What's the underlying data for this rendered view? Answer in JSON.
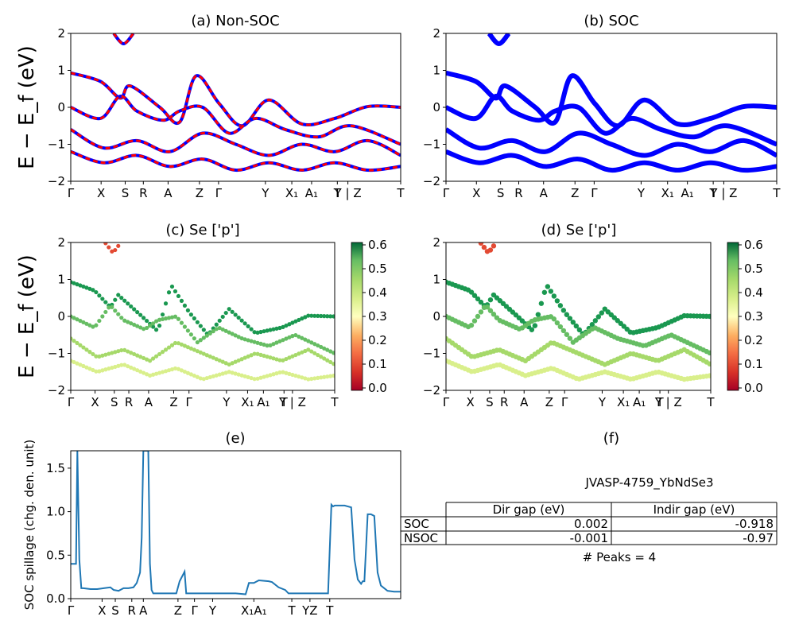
{
  "chart_data": [
    {
      "id": "a",
      "type": "line",
      "title": "(a) Non-SOC",
      "ylabel": "E − E_f (eV)",
      "ylim": [
        -2,
        2
      ],
      "yticks": [
        "2",
        "1",
        "0",
        "−1",
        "−2"
      ],
      "kpath_labels": [
        "Γ",
        "X",
        "S",
        "R",
        "A",
        "Z",
        "Γ",
        "Y",
        "X₁",
        "A₁",
        "T",
        "Y | Z",
        "T"
      ],
      "series": [
        {
          "color": "#0000ff",
          "x": [
            0,
            0.09,
            0.15,
            0.18,
            0.27,
            0.33,
            0.38,
            0.45,
            0.52,
            0.6,
            0.7,
            0.8,
            0.9,
            1.0
          ],
          "y": [
            0.93,
            0.7,
            0.25,
            0.58,
            0.0,
            -0.4,
            0.85,
            0.1,
            -0.5,
            0.2,
            -0.45,
            -0.3,
            0.02,
            0.0
          ]
        },
        {
          "color": "#0000ff",
          "x": [
            0,
            0.09,
            0.15,
            0.2,
            0.28,
            0.33,
            0.4,
            0.48,
            0.56,
            0.65,
            0.75,
            0.85,
            1.0
          ],
          "y": [
            0.0,
            -0.3,
            0.3,
            -0.1,
            -0.35,
            -0.1,
            0.0,
            -0.7,
            -0.3,
            -0.6,
            -0.8,
            -0.5,
            -1.0
          ]
        },
        {
          "color": "#0000ff",
          "x": [
            0,
            0.1,
            0.2,
            0.3,
            0.4,
            0.5,
            0.6,
            0.7,
            0.8,
            0.9,
            1.0
          ],
          "y": [
            -0.6,
            -1.1,
            -0.9,
            -1.2,
            -0.7,
            -1.0,
            -1.3,
            -1.0,
            -1.2,
            -0.9,
            -1.3
          ]
        },
        {
          "color": "#0000ff",
          "x": [
            0,
            0.1,
            0.2,
            0.3,
            0.4,
            0.5,
            0.6,
            0.7,
            0.8,
            0.9,
            1.0
          ],
          "y": [
            -1.2,
            -1.5,
            -1.3,
            -1.6,
            -1.4,
            -1.7,
            -1.5,
            -1.7,
            -1.5,
            -1.7,
            -1.6
          ]
        },
        {
          "color": "#0000ff",
          "x": [
            0.13,
            0.16,
            0.19
          ],
          "y": [
            2.0,
            1.72,
            2.0
          ]
        }
      ],
      "overlay_color": "#ff0000"
    },
    {
      "id": "b",
      "type": "line",
      "title": "(b) SOC",
      "ylim": [
        -2,
        2
      ],
      "yticks": [
        "2",
        "1",
        "0",
        "−1",
        "−2"
      ],
      "kpath_labels": [
        "Γ",
        "X",
        "S",
        "R",
        "A",
        "Z",
        "Γ",
        "Y",
        "X₁",
        "A₁",
        "T",
        "Y | Z",
        "T"
      ],
      "series_color": "#0000ff"
    },
    {
      "id": "c",
      "type": "scatter",
      "title": "(c)  Se ['p']",
      "ylabel": "E − E_f (eV)",
      "ylim": [
        -2,
        2
      ],
      "yticks": [
        "2",
        "1",
        "0",
        "−1",
        "−2"
      ],
      "kpath_labels": [
        "Γ",
        "X",
        "S",
        "R",
        "A",
        "Z",
        "Γ",
        "Y",
        "X₁",
        "A₁",
        "T",
        "Y | Z",
        "T"
      ],
      "colorbar": {
        "ticks": [
          "0.6",
          "0.5",
          "0.4",
          "0.3",
          "0.2",
          "0.1",
          "0.0"
        ],
        "range": [
          0.0,
          0.6
        ]
      }
    },
    {
      "id": "d",
      "type": "scatter",
      "title": "(d) Se ['p']",
      "ylim": [
        -2,
        2
      ],
      "yticks": [
        "2",
        "1",
        "0",
        "−1",
        "−2"
      ],
      "kpath_labels": [
        "Γ",
        "X",
        "S",
        "R",
        "A",
        "Z",
        "Γ",
        "Y",
        "X₁",
        "A₁",
        "T",
        "Y | Z",
        "T"
      ],
      "colorbar": {
        "ticks": [
          "0.6",
          "0.5",
          "0.4",
          "0.3",
          "0.2",
          "0.1",
          "0.0"
        ],
        "range": [
          0.0,
          0.6
        ]
      }
    },
    {
      "id": "e",
      "type": "line",
      "title": "(e)",
      "ylabel": "SOC spillage (chg. den. unit)",
      "ylim": [
        0,
        1.7
      ],
      "yticks": [
        "1.5",
        "1.0",
        "0.5",
        "0.0"
      ],
      "kpath_labels": [
        "Γ",
        "X",
        "S",
        "R",
        "A",
        "Z",
        "Γ",
        "Y",
        "X₁A₁",
        "T",
        "YZ",
        "T"
      ],
      "x": [
        0.0,
        0.016,
        0.02,
        0.026,
        0.032,
        0.038,
        0.06,
        0.08,
        0.1,
        0.12,
        0.13,
        0.145,
        0.16,
        0.175,
        0.19,
        0.2,
        0.21,
        0.215,
        0.22,
        0.225,
        0.235,
        0.24,
        0.245,
        0.25,
        0.255,
        0.32,
        0.33,
        0.345,
        0.35,
        0.37,
        0.4,
        0.45,
        0.5,
        0.53,
        0.54,
        0.555,
        0.57,
        0.6,
        0.61,
        0.63,
        0.65,
        0.66,
        0.7,
        0.75,
        0.78,
        0.79,
        0.795,
        0.8,
        0.81,
        0.83,
        0.85,
        0.86,
        0.87,
        0.88,
        0.885,
        0.89,
        0.9,
        0.91,
        0.92,
        0.93,
        0.94,
        0.96,
        0.98,
        1.0
      ],
      "y": [
        0.4,
        0.4,
        1.7,
        0.45,
        0.12,
        0.12,
        0.11,
        0.11,
        0.12,
        0.13,
        0.1,
        0.09,
        0.12,
        0.12,
        0.13,
        0.18,
        0.3,
        0.7,
        1.7,
        1.7,
        1.7,
        0.4,
        0.1,
        0.06,
        0.06,
        0.06,
        0.2,
        0.31,
        0.06,
        0.06,
        0.06,
        0.06,
        0.06,
        0.05,
        0.18,
        0.18,
        0.21,
        0.2,
        0.19,
        0.13,
        0.1,
        0.06,
        0.06,
        0.06,
        0.06,
        1.08,
        1.06,
        1.07,
        1.07,
        1.07,
        1.05,
        0.45,
        0.22,
        0.17,
        0.2,
        0.2,
        0.97,
        0.97,
        0.95,
        0.3,
        0.15,
        0.09,
        0.08,
        0.08
      ],
      "color": "#1f77b4"
    },
    {
      "id": "f",
      "type": "table",
      "title": "(f)",
      "subtitle": "JVASP-4759_YbNdSe3",
      "columns": [
        "",
        "Dir gap (eV)",
        "Indir gap (eV)"
      ],
      "rows": [
        [
          "SOC",
          "0.002",
          "-0.918"
        ],
        [
          "NSOC",
          "-0.001",
          "-0.97"
        ]
      ],
      "footer": "# Peaks = 4"
    }
  ]
}
